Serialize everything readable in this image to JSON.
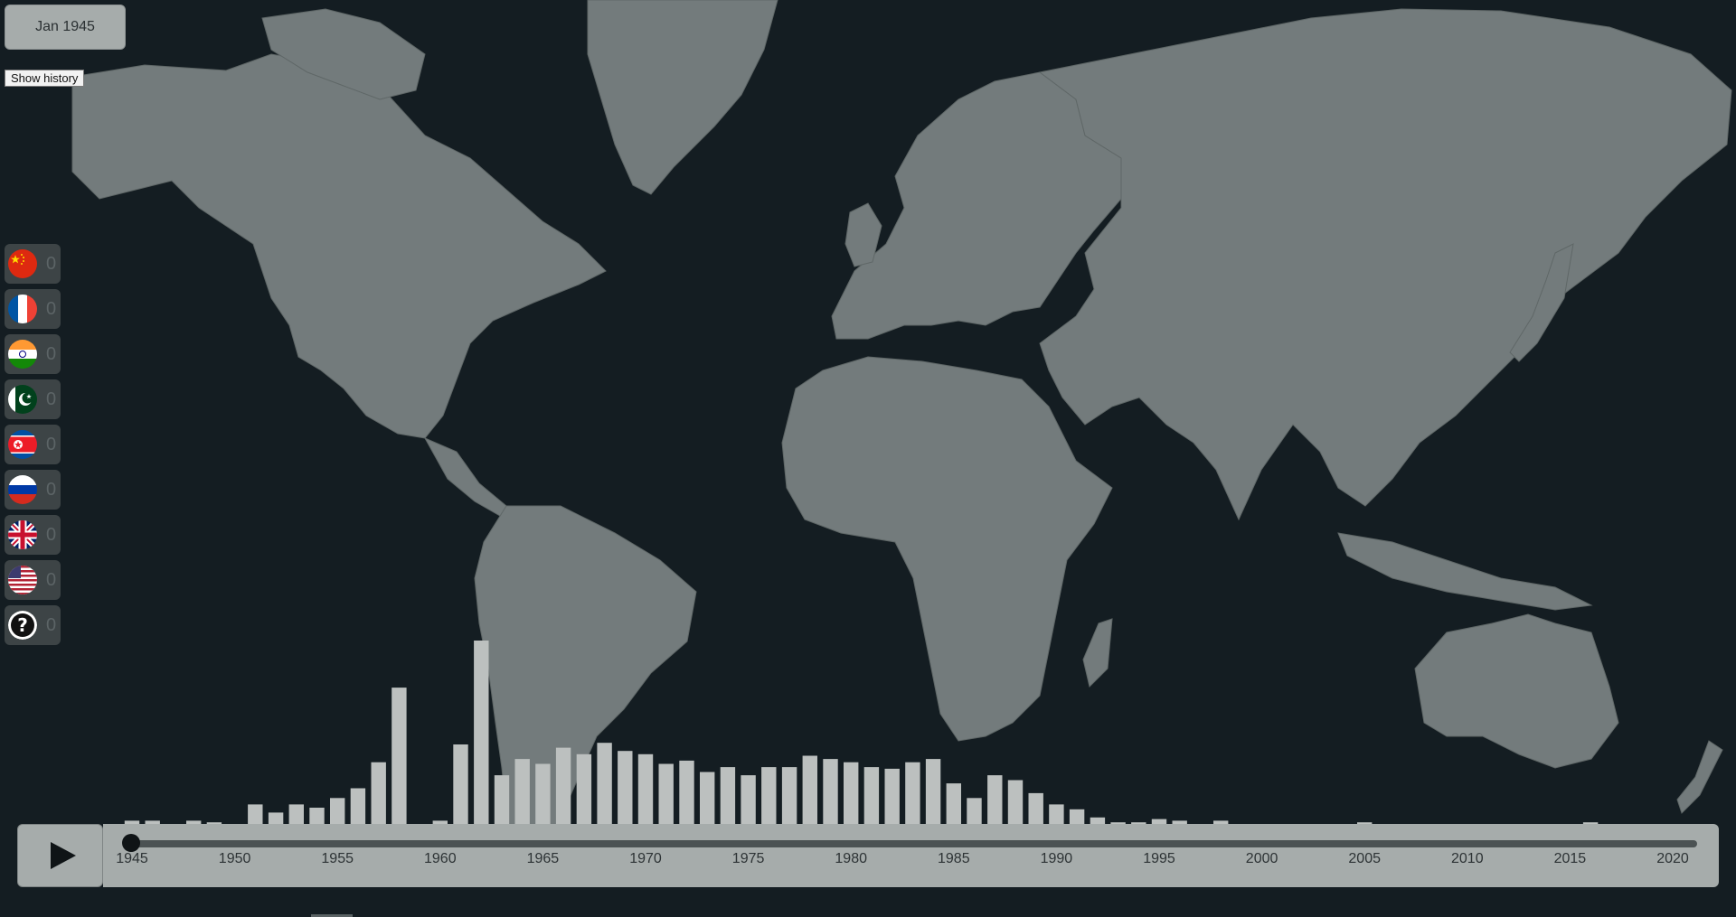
{
  "header": {
    "date": "Jan 1945",
    "history_button": "Show history"
  },
  "countries": [
    {
      "flag": "china-flag-icon",
      "count": "0"
    },
    {
      "flag": "france-flag-icon",
      "count": "0"
    },
    {
      "flag": "india-flag-icon",
      "count": "0"
    },
    {
      "flag": "pakistan-flag-icon",
      "count": "0"
    },
    {
      "flag": "north-korea-flag-icon",
      "count": "0"
    },
    {
      "flag": "russia-flag-icon",
      "count": "0"
    },
    {
      "flag": "united-kingdom-flag-icon",
      "count": "0"
    },
    {
      "flag": "united-states-flag-icon",
      "count": "0"
    },
    {
      "flag": "unknown-question-icon",
      "count": "0"
    }
  ],
  "controls": {
    "play_icon": "play-icon",
    "slider_value": 0
  },
  "timeline": {
    "tick_labels": [
      "1945",
      "1950",
      "1955",
      "1960",
      "1965",
      "1970",
      "1975",
      "1980",
      "1985",
      "1990",
      "1995",
      "2000",
      "2005",
      "2010",
      "2015",
      "2020"
    ]
  },
  "chart_data": {
    "type": "bar",
    "x": [
      1945,
      1946,
      1947,
      1948,
      1949,
      1950,
      1951,
      1952,
      1953,
      1954,
      1955,
      1956,
      1957,
      1958,
      1959,
      1960,
      1961,
      1962,
      1963,
      1964,
      1965,
      1966,
      1967,
      1968,
      1969,
      1970,
      1971,
      1972,
      1973,
      1974,
      1975,
      1976,
      1977,
      1978,
      1979,
      1980,
      1981,
      1982,
      1983,
      1984,
      1985,
      1986,
      1987,
      1988,
      1989,
      1990,
      1991,
      1992,
      1993,
      1994,
      1995,
      1996,
      1997,
      1998,
      1999,
      2000,
      2001,
      2002,
      2003,
      2004,
      2005,
      2006,
      2007,
      2008,
      2009,
      2010,
      2011,
      2012,
      2013,
      2014,
      2015,
      2016,
      2017,
      2018,
      2019,
      2020
    ],
    "values": [
      2,
      2,
      0,
      2,
      1,
      0,
      12,
      7,
      12,
      10,
      16,
      22,
      38,
      84,
      0,
      2,
      49,
      113,
      30,
      40,
      37,
      47,
      43,
      50,
      45,
      43,
      37,
      39,
      32,
      35,
      30,
      35,
      35,
      42,
      40,
      38,
      35,
      34,
      38,
      40,
      25,
      16,
      30,
      27,
      19,
      12,
      9,
      4,
      1,
      1,
      3,
      2,
      0,
      2,
      0,
      0,
      0,
      0,
      0,
      0,
      1,
      0,
      0,
      0,
      0,
      0,
      0,
      0,
      0,
      0,
      0,
      1,
      0,
      0,
      0,
      0
    ],
    "xlim": [
      1945,
      2020
    ]
  }
}
